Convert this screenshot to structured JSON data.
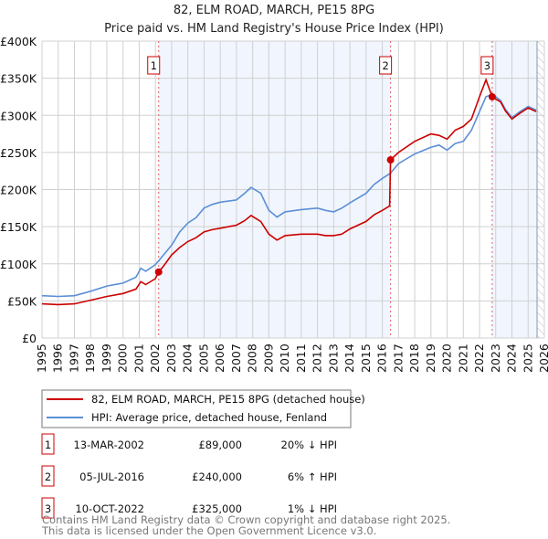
{
  "chart_data": {
    "type": "line",
    "title": "82, ELM ROAD, MARCH, PE15 8PG",
    "subtitle": "Price paid vs. HM Land Registry's House Price Index (HPI)",
    "xlim": [
      1995,
      2026
    ],
    "ylim": [
      0,
      400000
    ],
    "y_ticks": [
      0,
      50000,
      100000,
      150000,
      200000,
      250000,
      300000,
      350000,
      400000
    ],
    "y_tick_labels": [
      "£0",
      "£50K",
      "£100K",
      "£150K",
      "£200K",
      "£250K",
      "£300K",
      "£350K",
      "£400K"
    ],
    "x_ticks": [
      1995,
      1996,
      1997,
      1998,
      1999,
      2000,
      2001,
      2002,
      2003,
      2004,
      2005,
      2006,
      2007,
      2008,
      2009,
      2010,
      2011,
      2012,
      2013,
      2014,
      2015,
      2016,
      2017,
      2018,
      2019,
      2020,
      2021,
      2022,
      2023,
      2024,
      2025,
      2026
    ],
    "grid": true,
    "shaded_ranges": [
      [
        2002.2,
        2016.51
      ],
      [
        2022.78,
        2025.55
      ]
    ],
    "hatched_from": 2025.55,
    "series": [
      {
        "name": "82, ELM ROAD, MARCH, PE15 8PG (detached house)",
        "color": "#cc0000",
        "x": [
          1995,
          1996,
          1997,
          1998,
          1999,
          2000,
          2000.8,
          2001.1,
          2001.4,
          2002,
          2002.2,
          2002.5,
          2003,
          2003.5,
          2004,
          2004.5,
          2005,
          2005.5,
          2006,
          2007,
          2007.5,
          2007.9,
          2008.5,
          2009,
          2009.5,
          2010,
          2011,
          2012,
          2012.5,
          2013,
          2013.5,
          2014,
          2015,
          2015.5,
          2016,
          2016.45,
          2016.51,
          2017,
          2018,
          2019,
          2019.5,
          2020,
          2020.5,
          2021,
          2021.5,
          2022,
          2022.4,
          2022.78,
          2023,
          2023.3,
          2023.6,
          2024,
          2024.5,
          2025,
          2025.5
        ],
        "y": [
          46000,
          45000,
          46000,
          51000,
          56000,
          60000,
          66000,
          76000,
          72000,
          80000,
          89000,
          97000,
          112000,
          122000,
          130000,
          135000,
          143000,
          146000,
          148000,
          152000,
          158000,
          165000,
          157000,
          140000,
          132000,
          138000,
          140000,
          140000,
          138000,
          138000,
          140000,
          147000,
          157000,
          166000,
          172000,
          178000,
          240000,
          250000,
          265000,
          275000,
          273000,
          268000,
          280000,
          285000,
          295000,
          325000,
          348000,
          325000,
          322000,
          318000,
          306000,
          295000,
          303000,
          310000,
          305000
        ]
      },
      {
        "name": "HPI: Average price, detached house, Fenland",
        "color": "#5b8fd6",
        "x": [
          1995,
          1996,
          1997,
          1998,
          1999,
          2000,
          2000.8,
          2001.1,
          2001.4,
          2002,
          2002.5,
          2003,
          2003.5,
          2004,
          2004.5,
          2005,
          2005.5,
          2006,
          2007,
          2007.5,
          2007.9,
          2008.5,
          2009,
          2009.5,
          2010,
          2011,
          2012,
          2012.5,
          2013,
          2013.5,
          2014,
          2015,
          2015.5,
          2016,
          2016.5,
          2017,
          2018,
          2019,
          2019.5,
          2020,
          2020.5,
          2021,
          2021.5,
          2022,
          2022.4,
          2022.78,
          2023,
          2023.3,
          2023.6,
          2024,
          2024.5,
          2025,
          2025.5
        ],
        "y": [
          57000,
          56000,
          57000,
          63000,
          70000,
          74000,
          82000,
          94000,
          90000,
          99000,
          112000,
          125000,
          143000,
          155000,
          162000,
          175000,
          180000,
          183000,
          186000,
          195000,
          203000,
          195000,
          172000,
          163000,
          170000,
          173000,
          175000,
          172000,
          170000,
          175000,
          182000,
          195000,
          207000,
          215000,
          222000,
          235000,
          248000,
          257000,
          260000,
          253000,
          262000,
          265000,
          280000,
          305000,
          325000,
          328000,
          325000,
          320000,
          308000,
          297000,
          305000,
          312000,
          307000
        ]
      }
    ],
    "sales": [
      {
        "label": "1",
        "x": 2002.2,
        "price": 89000,
        "date": "13-MAR-2002",
        "price_text": "£89,000",
        "hpi_text": "20% ↓ HPI"
      },
      {
        "label": "2",
        "x": 2016.51,
        "price": 240000,
        "date": "05-JUL-2016",
        "price_text": "£240,000",
        "hpi_text": "6% ↑ HPI"
      },
      {
        "label": "3",
        "x": 2022.78,
        "price": 325000,
        "date": "10-OCT-2022",
        "price_text": "£325,000",
        "hpi_text": "1% ↓ HPI"
      }
    ]
  },
  "legend": {
    "red": "82, ELM ROAD, MARCH, PE15 8PG (detached house)",
    "blue": "HPI: Average price, detached house, Fenland"
  },
  "footer": {
    "line1": "Contains HM Land Registry data © Crown copyright and database right 2025.",
    "line2": "This data is licensed under the Open Government Licence v3.0."
  }
}
